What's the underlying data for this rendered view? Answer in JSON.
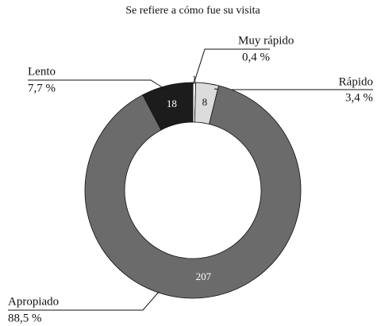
{
  "chart_data": {
    "type": "donut",
    "title": "Se refiere a cómo fue su visita",
    "categories": [
      "Muy rápido",
      "Rápido",
      "Apropiado",
      "Lento"
    ],
    "values": [
      1,
      8,
      207,
      18
    ],
    "percent_labels": [
      "0,4 %",
      "3,4 %",
      "88,5 %",
      "7,7 %"
    ],
    "colors": [
      "#ffffff",
      "#dcdcdc",
      "#6b6b6b",
      "#1c1c1c"
    ]
  }
}
